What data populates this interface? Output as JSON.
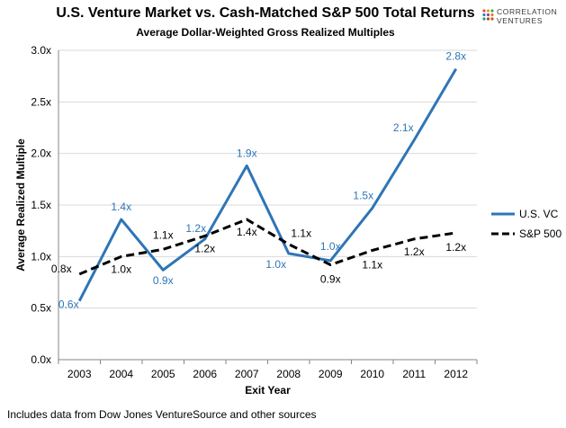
{
  "header": {
    "title": "U.S. Venture Market vs. Cash-Matched S&P 500 Total Returns",
    "subtitle": "Average Dollar-Weighted Gross Realized Multiples"
  },
  "logo": {
    "line1": "Correlation",
    "line2": "Ventures",
    "colors": [
      "#e74c3c",
      "#f39c12",
      "#27ae60",
      "#2980b9",
      "#8e44ad",
      "#e67e22",
      "#16a085",
      "#c0392b",
      "#d35400"
    ]
  },
  "footnote": "Includes data from Dow Jones VentureSource and other sources",
  "chart_data": {
    "type": "line",
    "x": [
      "2003",
      "2004",
      "2005",
      "2006",
      "2007",
      "2008",
      "2009",
      "2010",
      "2011",
      "2012"
    ],
    "xlabel": "Exit Year",
    "ylabel": "Average Realized Multiple",
    "ylim": [
      0,
      3.0
    ],
    "yticks": [
      "0.0x",
      "0.5x",
      "1.0x",
      "1.5x",
      "2.0x",
      "2.5x",
      "3.0x"
    ],
    "grid": "horizontal",
    "legend": "right",
    "series": [
      {
        "name": "U.S. VC",
        "color": "#2e75b6",
        "style": "solid",
        "values": [
          0.57,
          1.36,
          0.87,
          1.17,
          1.88,
          1.03,
          0.96,
          1.47,
          2.13,
          2.82
        ],
        "labels": [
          "0.6x",
          "1.4x",
          "0.9x",
          "1.2x",
          "1.9x",
          "1.0x",
          "1.0x",
          "1.5x",
          "2.1x",
          "2.8x"
        ]
      },
      {
        "name": "S&P 500",
        "color": "#000000",
        "style": "dashed",
        "values": [
          0.83,
          1.0,
          1.07,
          1.2,
          1.36,
          1.12,
          0.92,
          1.06,
          1.17,
          1.23
        ],
        "labels": [
          "0.8x",
          "1.0x",
          "1.1x",
          "1.2x",
          "1.4x",
          "1.1x",
          "0.9x",
          "1.1x",
          "1.2x",
          "1.2x"
        ]
      }
    ]
  }
}
